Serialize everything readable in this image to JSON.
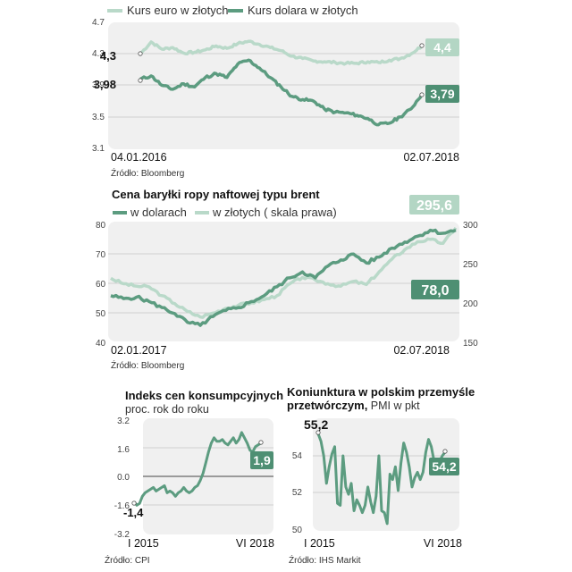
{
  "colors": {
    "dark": "#5c9c80",
    "light": "#b9d9c9",
    "panel": "#f0f0f0",
    "grid": "#cfcfcf",
    "badge_dark": "#4e8f73",
    "badge_light": "#b3d6c4"
  },
  "chart_data": [
    {
      "type": "line",
      "title": "",
      "legend": [
        "Kurs euro w złotych",
        "Kurs dolara w złotych"
      ],
      "x_start": "04.01.2016",
      "x_end": "02.07.2018",
      "y_ticks": [
        "4.7",
        "4.3",
        "3.9",
        "3.5",
        "3.1"
      ],
      "ylim": [
        3.1,
        4.7
      ],
      "start_labels": [
        "4,3",
        "3,98"
      ],
      "end_labels": [
        "4,4",
        "3,79"
      ],
      "source": "Źródło: Bloomberg",
      "series": [
        {
          "name": "Kurs euro w złotych",
          "values": [
            4.3,
            4.45,
            4.36,
            4.38,
            4.31,
            4.32,
            4.35,
            4.4,
            4.37,
            4.43,
            4.46,
            4.42,
            4.38,
            4.34,
            4.27,
            4.24,
            4.21,
            4.2,
            4.19,
            4.18,
            4.18,
            4.2,
            4.19,
            4.22,
            4.24,
            4.3,
            4.4
          ]
        },
        {
          "name": "Kurs dolara w złotych",
          "values": [
            3.98,
            4.02,
            3.9,
            3.85,
            3.92,
            3.88,
            4.0,
            4.05,
            4.0,
            4.17,
            4.22,
            4.12,
            4.0,
            3.88,
            3.76,
            3.72,
            3.7,
            3.6,
            3.56,
            3.55,
            3.52,
            3.48,
            3.4,
            3.42,
            3.5,
            3.6,
            3.79
          ]
        }
      ]
    },
    {
      "type": "line",
      "title": "Cena baryłki ropy naftowej typu brent",
      "legend": [
        "w dolarach",
        "w złotych ( skala prawa)"
      ],
      "x_start": "02.01.2017",
      "x_end": "02.07.2018",
      "y_ticks_left": [
        "80",
        "70",
        "60",
        "50",
        "40"
      ],
      "ylim_left": [
        40,
        80
      ],
      "y_ticks_right": [
        "300",
        "250",
        "200",
        "150"
      ],
      "ylim_right": [
        150,
        300
      ],
      "end_labels": [
        "295,6",
        "78,0"
      ],
      "source": "Źródło: Bloomberg",
      "series": [
        {
          "name": "w dolarach",
          "values": [
            56,
            55,
            55.5,
            54,
            52,
            50,
            47,
            46,
            49,
            51,
            52,
            54,
            56,
            59,
            62,
            64,
            62,
            66,
            68,
            70,
            67,
            69,
            72,
            74,
            76,
            78,
            77,
            78
          ]
        },
        {
          "name": "w złotych ( skala prawa)",
          "values": [
            232,
            225,
            222,
            221,
            210,
            200,
            190,
            183,
            188,
            194,
            198,
            201,
            205,
            210,
            225,
            233,
            230,
            225,
            222,
            228,
            224,
            240,
            256,
            268,
            278,
            281,
            276,
            295.6
          ]
        }
      ]
    },
    {
      "type": "line",
      "title": "Indeks cen konsumpcyjnych",
      "subtitle": "proc. rok do roku",
      "x_start": "I 2015",
      "x_end": "VI 2018",
      "y_ticks": [
        "3.2",
        "1.6",
        "0.0",
        "-1.6",
        "-3.2"
      ],
      "ylim": [
        -3.2,
        3.2
      ],
      "start_label": "-1,4",
      "end_label": "1,9",
      "source": "Źródło: CPI",
      "series": [
        {
          "name": "Indeks cen konsumpcyjnych",
          "values": [
            -1.4,
            -1.6,
            -1.5,
            -1.1,
            -0.9,
            -0.8,
            -0.7,
            -0.6,
            -0.8,
            -0.7,
            -0.6,
            -0.5,
            -0.9,
            -0.8,
            -0.9,
            -1.1,
            -0.9,
            -0.8,
            -0.6,
            -0.8,
            -0.9,
            -0.8,
            -0.6,
            -0.5,
            -0.2,
            0.2,
            0.8,
            1.4,
            1.9,
            2.2,
            2.0,
            2.0,
            2.1,
            1.9,
            1.8,
            2.0,
            2.2,
            1.9,
            2.1,
            2.5,
            2.2,
            1.9,
            1.5,
            1.4,
            1.7,
            1.8,
            1.9
          ]
        }
      ]
    },
    {
      "type": "line",
      "title": "Koniunktura w polskim przemyśle przetwórczym, PMI w pkt",
      "title_line1": "Koniunktura w polskim przemyśle",
      "title_line2": "przetwórczym,",
      "title_line2_regular": " PMI w pkt",
      "x_start": "I 2015",
      "x_end": "VI 2018",
      "y_ticks": [
        "54",
        "52",
        "50"
      ],
      "ylim": [
        50,
        56
      ],
      "start_label": "55,2",
      "end_label": "54,2",
      "source": "Źródło: IHS Markit",
      "series": [
        {
          "name": "PMI",
          "values": [
            55.2,
            54.8,
            54.0,
            52.5,
            53.4,
            54.1,
            54.5,
            51.4,
            51.3,
            54.0,
            52.3,
            51.9,
            52.5,
            51.0,
            51.6,
            51.3,
            50.9,
            51.3,
            52.3,
            51.5,
            50.9,
            51.8,
            54.0,
            51.0,
            50.9,
            50.3,
            53.0,
            52.7,
            53.4,
            52.1,
            53.6,
            54.7,
            54.2,
            53.4,
            52.3,
            52.8,
            53.1,
            52.7,
            53.1,
            54.2,
            54.9,
            54.5,
            53.7,
            53.2,
            53.7,
            54.0,
            54.2
          ]
        }
      ]
    }
  ]
}
